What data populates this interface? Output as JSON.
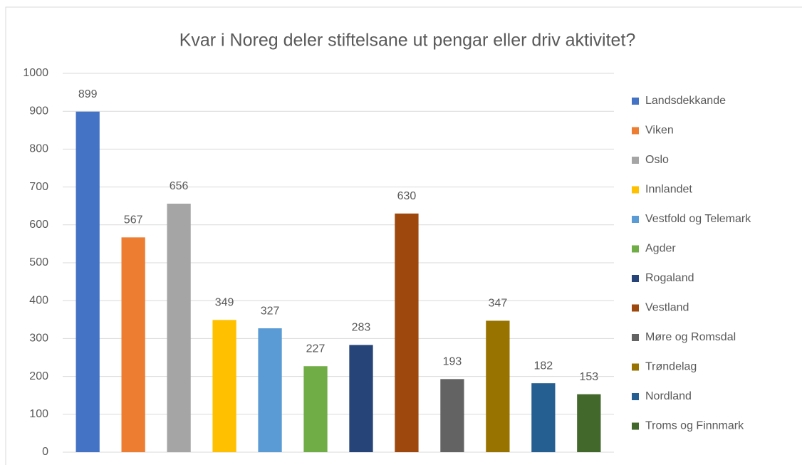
{
  "chart_data": {
    "type": "bar",
    "title": "Kvar i Noreg deler stiftelsane ut pengar eller driv aktivitet?",
    "categories": [
      null
    ],
    "series": [
      {
        "name": "Landsdekkande",
        "color": "#4472c4",
        "values": [
          899
        ]
      },
      {
        "name": "Viken",
        "color": "#ed7d31",
        "values": [
          567
        ]
      },
      {
        "name": "Oslo",
        "color": "#a5a5a5",
        "values": [
          656
        ]
      },
      {
        "name": "Innlandet",
        "color": "#ffc000",
        "values": [
          349
        ]
      },
      {
        "name": "Vestfold og Telemark",
        "color": "#5b9bd5",
        "values": [
          327
        ]
      },
      {
        "name": "Agder",
        "color": "#70ad47",
        "values": [
          227
        ]
      },
      {
        "name": "Rogaland",
        "color": "#264478",
        "values": [
          283
        ]
      },
      {
        "name": "Vestland",
        "color": "#9e480e",
        "values": [
          630
        ]
      },
      {
        "name": "Møre og Romsdal",
        "color": "#636363",
        "values": [
          193
        ]
      },
      {
        "name": "Trøndelag",
        "color": "#997300",
        "values": [
          347
        ]
      },
      {
        "name": "Nordland",
        "color": "#255e91",
        "values": [
          182
        ]
      },
      {
        "name": "Troms og Finnmark",
        "color": "#43682b",
        "values": [
          153
        ]
      }
    ],
    "ylim": [
      0,
      1000
    ],
    "yticks": [
      0,
      100,
      200,
      300,
      400,
      500,
      600,
      700,
      800,
      900,
      1000
    ],
    "grid": true,
    "legend": "right"
  }
}
